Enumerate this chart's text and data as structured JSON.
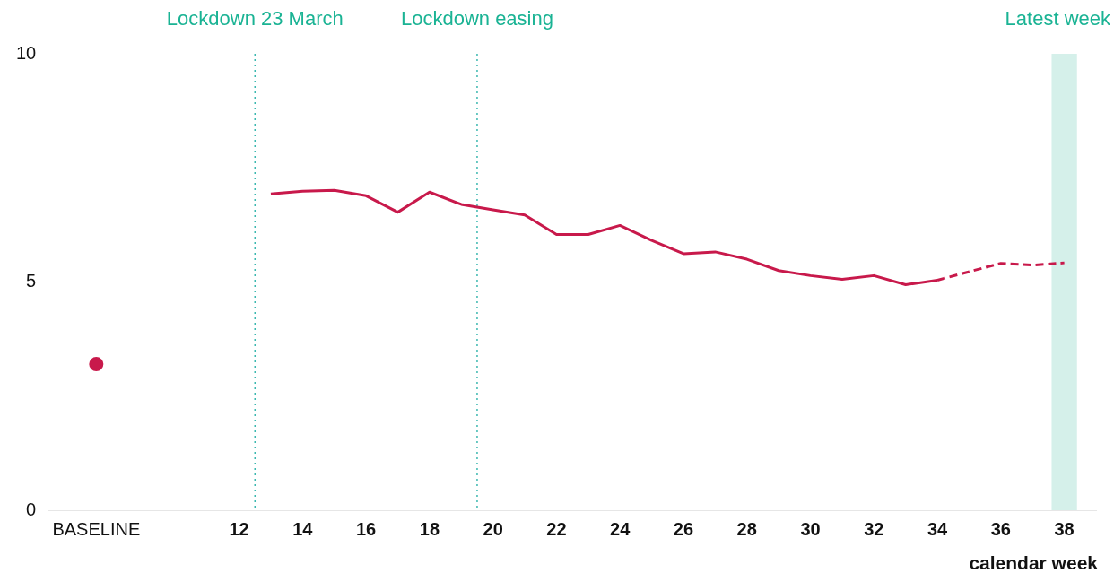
{
  "chart_data": {
    "type": "line",
    "xlabel": "calendar week",
    "xlim": [
      6,
      39
    ],
    "xticks": [
      {
        "value": 7.5,
        "label": "BASELINE"
      },
      12,
      14,
      16,
      18,
      20,
      22,
      24,
      26,
      28,
      30,
      32,
      34,
      36,
      38
    ],
    "ylim": [
      0,
      10
    ],
    "yticks": [
      0,
      5,
      10
    ],
    "grid": false,
    "legend": false,
    "series": [
      {
        "type": "line",
        "color": "#c8194b",
        "line_style": "solid",
        "marker": "none",
        "x": [
          13,
          14,
          15,
          16,
          17,
          18,
          19,
          20,
          21,
          22,
          23,
          24,
          25,
          26,
          27,
          28,
          29,
          30,
          31,
          32,
          33,
          34
        ],
        "values": [
          6.93,
          6.99,
          7.01,
          6.89,
          6.53,
          6.97,
          6.7,
          6.58,
          6.47,
          6.04,
          6.04,
          6.24,
          5.91,
          5.62,
          5.66,
          5.5,
          5.25,
          5.14,
          5.06,
          5.14,
          4.94,
          5.04
        ]
      },
      {
        "type": "line",
        "color": "#c8194b",
        "line_style": "dashed",
        "marker": "none",
        "x": [
          34,
          36,
          37,
          38
        ],
        "values": [
          5.04,
          5.41,
          5.37,
          5.42
        ]
      },
      {
        "type": "scatter",
        "color": "#c8194b",
        "marker": "circle",
        "x": [
          7.5
        ],
        "values": [
          3.2
        ]
      }
    ],
    "ref_lines": [
      {
        "axis": "x",
        "value": 12.5,
        "label": "Lockdown 23 March",
        "color": "#3cb8b0",
        "line_style": "dotted"
      },
      {
        "axis": "x",
        "value": 19.5,
        "label": "Lockdown easing",
        "color": "#3cb8b0",
        "line_style": "dotted"
      }
    ],
    "bands": [
      {
        "axis": "x",
        "from": 37.6,
        "to": 38.4,
        "label": "Latest week",
        "color": "#d5f0ea"
      }
    ]
  }
}
